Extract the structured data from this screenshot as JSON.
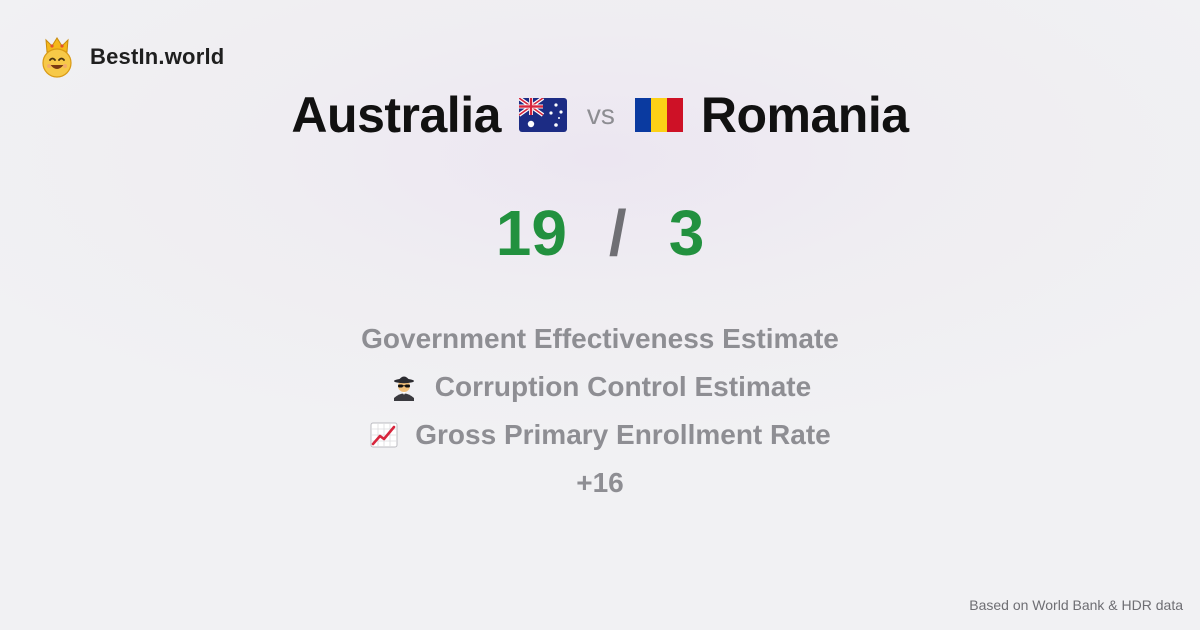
{
  "brand": {
    "name": "BestIn.world",
    "logo_icon": "crowned-smiley-icon"
  },
  "title": {
    "country_a": "Australia",
    "country_a_flag": "australia-flag-icon",
    "vs": "vs",
    "country_b": "Romania",
    "country_b_flag": "romania-flag-icon"
  },
  "score": {
    "a": "19",
    "separator": "/",
    "b": "3",
    "color": "#22913f"
  },
  "metrics": [
    {
      "label": "Government Effectiveness Estimate",
      "icon": ""
    },
    {
      "label": "Corruption Control Estimate",
      "icon": "spy-icon"
    },
    {
      "label": "Gross Primary Enrollment Rate",
      "icon": "chart-increasing-icon"
    }
  ],
  "more": "+16",
  "footer": "Based on World Bank & HDR data"
}
